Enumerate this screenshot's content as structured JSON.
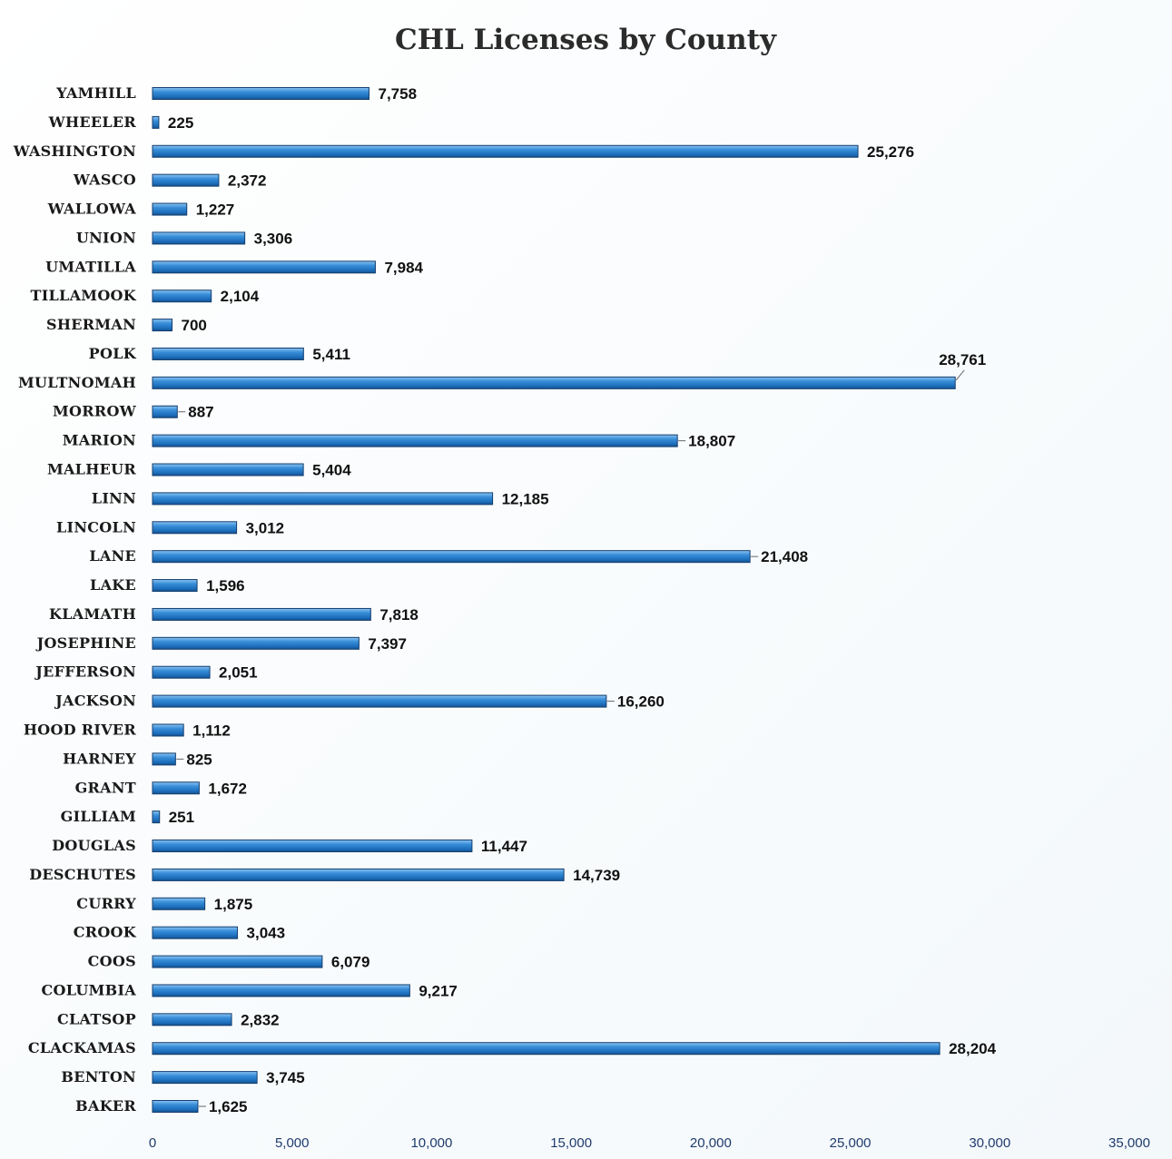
{
  "chart_data": {
    "type": "bar",
    "orientation": "horizontal",
    "title": "CHL Licenses by County",
    "categories": [
      "YAMHILL",
      "WHEELER",
      "WASHINGTON",
      "WASCO",
      "WALLOWA",
      "UNION",
      "UMATILLA",
      "TILLAMOOK",
      "SHERMAN",
      "POLK",
      "MULTNOMAH",
      "MORROW",
      "MARION",
      "MALHEUR",
      "LINN",
      "LINCOLN",
      "LANE",
      "LAKE",
      "KLAMATH",
      "JOSEPHINE",
      "JEFFERSON",
      "JACKSON",
      "HOOD RIVER",
      "HARNEY",
      "GRANT",
      "GILLIAM",
      "DOUGLAS",
      "DESCHUTES",
      "CURRY",
      "CROOK",
      "COOS",
      "COLUMBIA",
      "CLATSOP",
      "CLACKAMAS",
      "BENTON",
      "BAKER"
    ],
    "values": [
      7758,
      225,
      25276,
      2372,
      1227,
      3306,
      7984,
      2104,
      700,
      5411,
      28761,
      887,
      18807,
      5404,
      12185,
      3012,
      21408,
      1596,
      7818,
      7397,
      2051,
      16260,
      1112,
      825,
      1672,
      251,
      11447,
      14739,
      1875,
      3043,
      6079,
      9217,
      2832,
      28204,
      3745,
      1625
    ],
    "value_labels": [
      "7,758",
      "225",
      "25,276",
      "2,372",
      "1,227",
      "3,306",
      "7,984",
      "2,104",
      "700",
      "5,411",
      "28,761",
      "887",
      "18,807",
      "5,404",
      "12,185",
      "3,012",
      "21,408",
      "1,596",
      "7,818",
      "7,397",
      "2,051",
      "16,260",
      "1,112",
      "825",
      "1,672",
      "251",
      "11,447",
      "14,739",
      "1,875",
      "3,043",
      "6,079",
      "9,217",
      "2,832",
      "28,204",
      "3,745",
      "1,625"
    ],
    "x_ticks": [
      0,
      5000,
      10000,
      15000,
      20000,
      25000,
      30000,
      35000
    ],
    "x_tick_labels": [
      "0",
      "5,000",
      "10,000",
      "15,000",
      "20,000",
      "25,000",
      "30,000",
      "35,000"
    ],
    "xlim": [
      0,
      35000
    ],
    "xlabel": "",
    "ylabel": "",
    "grid": false,
    "legend": "none",
    "bar_color": "#2478c4",
    "bar_edge_color": "#143e6e"
  }
}
